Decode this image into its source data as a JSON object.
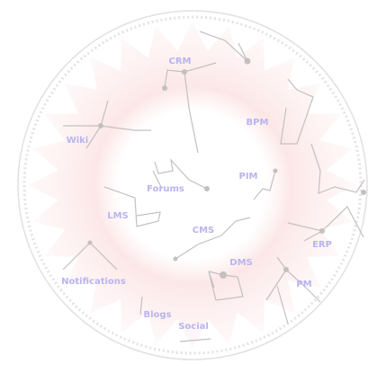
{
  "nodes": [
    {
      "label": "CRM"
    },
    {
      "label": "BPM"
    },
    {
      "label": "Wiki"
    },
    {
      "label": "PIM"
    },
    {
      "label": "Forums"
    },
    {
      "label": "LMS"
    },
    {
      "label": "CMS"
    },
    {
      "label": "ERP"
    },
    {
      "label": "DMS"
    },
    {
      "label": "Notifications"
    },
    {
      "label": "PM"
    },
    {
      "label": "Blogs"
    },
    {
      "label": "Social"
    }
  ]
}
